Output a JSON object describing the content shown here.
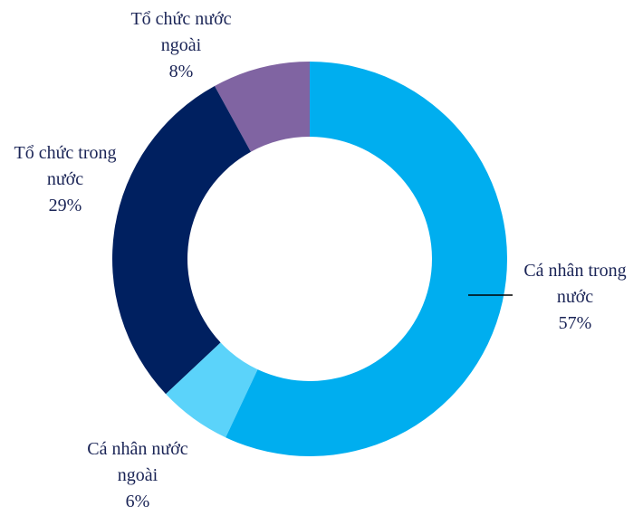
{
  "chart_data": {
    "type": "donut",
    "categories": [
      "Cá nhân trong nước",
      "Cá nhân nước ngoài",
      "Tổ chức trong nước",
      "Tổ chức nước ngoài"
    ],
    "values": [
      57,
      6,
      29,
      8
    ],
    "value_labels": [
      "57%",
      "6%",
      "29%",
      "8%"
    ],
    "colors": [
      "#00aeef",
      "#5bd3fa",
      "#002060",
      "#8064a2"
    ]
  }
}
